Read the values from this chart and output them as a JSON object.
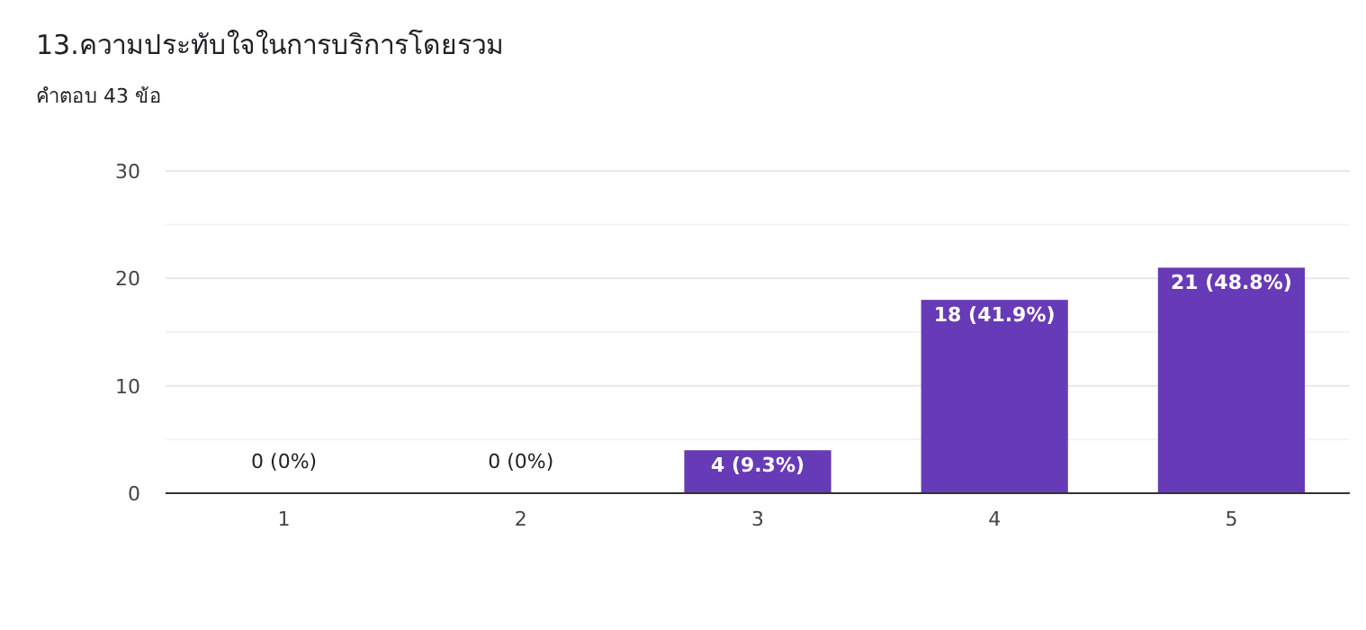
{
  "chart_data": {
    "type": "bar",
    "title": "13.ความประทับใจในการบริการโดยรวม",
    "subtitle": "คำตอบ 43 ข้อ",
    "categories": [
      "1",
      "2",
      "3",
      "4",
      "5"
    ],
    "values": [
      0,
      0,
      4,
      18,
      21
    ],
    "value_labels": [
      "0 (0%)",
      "0 (0%)",
      "4 (9.3%)",
      "18 (41.9%)",
      "21 (48.8%)"
    ],
    "color": "#673ab7",
    "ylim": [
      0,
      30
    ],
    "yticks": [
      0,
      {
        "value": 5,
        "label": null
      },
      10,
      {
        "value": 15,
        "label": null
      },
      20,
      {
        "value": 25,
        "label": null
      },
      30
    ],
    "grid": "y"
  }
}
